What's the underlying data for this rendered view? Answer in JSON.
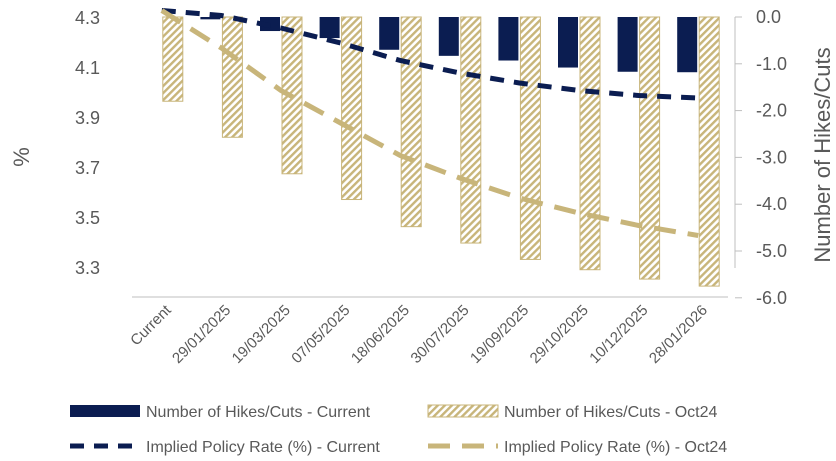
{
  "chart_data": {
    "type": "bar",
    "categories": [
      "Current",
      "29/01/2025",
      "19/03/2025",
      "07/05/2025",
      "18/06/2025",
      "30/07/2025",
      "19/09/2025",
      "29/10/2025",
      "10/12/2025",
      "28/01/2026"
    ],
    "series": [
      {
        "name": "Number of Hikes/Cuts  - Current",
        "type": "bar",
        "axis": "right",
        "color": "#0b1d51",
        "values": [
          0.0,
          -0.05,
          -0.3,
          -0.45,
          -0.7,
          -0.83,
          -0.93,
          -1.08,
          -1.17,
          -1.18
        ]
      },
      {
        "name": "Number of Hikes/Cuts - Oct24",
        "type": "bar",
        "axis": "right",
        "color": "#c8b57a",
        "pattern": "diagonal-hatch",
        "values": [
          -1.8,
          -2.57,
          -3.35,
          -3.9,
          -4.48,
          -4.83,
          -5.18,
          -5.4,
          -5.6,
          -5.75
        ]
      },
      {
        "name": "Implied Policy Rate (%) - Current",
        "type": "line",
        "axis": "left",
        "color": "#0b1d51",
        "dash": "dashed",
        "values": [
          4.33,
          4.31,
          4.26,
          4.2,
          4.13,
          4.08,
          4.04,
          4.01,
          3.99,
          3.98
        ]
      },
      {
        "name": "Implied Policy Rate (%) - Oct24",
        "type": "line",
        "axis": "left",
        "color": "#c8b57a",
        "dash": "dashed",
        "values": [
          4.33,
          4.18,
          4.01,
          3.88,
          3.75,
          3.66,
          3.58,
          3.52,
          3.47,
          3.43
        ]
      }
    ],
    "ylabel": "%",
    "y2label": "Number of Hikes/Cuts",
    "ylim": [
      3.3,
      4.4
    ],
    "y2lim": [
      -6.0,
      0.0
    ],
    "yticks": [
      "4.3",
      "4.1",
      "3.9",
      "3.7",
      "3.5",
      "3.3"
    ],
    "y2ticks": [
      "0.0",
      "-1.0",
      "-2.0",
      "-3.0",
      "-4.0",
      "-5.0",
      "-6.0"
    ],
    "legend": "bottom",
    "grid": false
  }
}
